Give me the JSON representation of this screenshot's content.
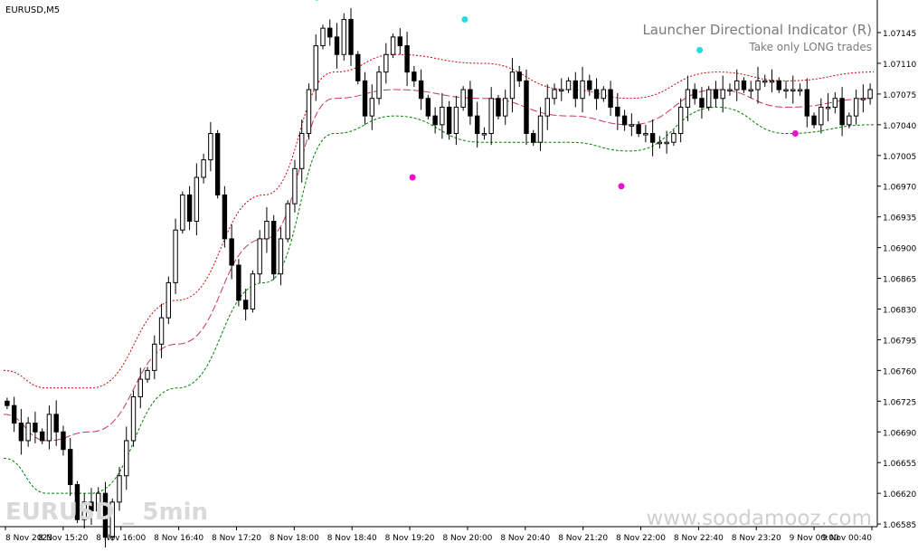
{
  "symbol_label": "EURUSD,M5",
  "indicator": {
    "name": "Launcher Directional Indicator (R)",
    "subtitle": "Take only LONG trades"
  },
  "watermark_left": "EURUSD _ 5min",
  "watermark_right": "www.soodamooz.com",
  "colors": {
    "upper_band": "#cc0000",
    "lower_band": "#008000",
    "middle_line": "#cc3366",
    "signal_up": "#22dddd",
    "signal_down": "#ee11cc",
    "candle": "#000000",
    "axis_text": "#000000"
  },
  "chart_data": {
    "type": "candlestick",
    "timeframe": "M5",
    "y_ticks": [
      "1.07145",
      "1.07110",
      "1.07075",
      "1.07040",
      "1.07005",
      "1.06970",
      "1.06935",
      "1.06900",
      "1.06865",
      "1.06830",
      "1.06795",
      "1.06760",
      "1.06725",
      "1.06690",
      "1.06655",
      "1.06620",
      "1.06585"
    ],
    "x_ticks": [
      "8 Nov 2023",
      "8 Nov 15:20",
      "8 Nov 16:00",
      "8 Nov 16:40",
      "8 Nov 17:20",
      "8 Nov 18:00",
      "8 Nov 18:40",
      "8 Nov 19:20",
      "8 Nov 20:00",
      "8 Nov 20:40",
      "8 Nov 21:20",
      "8 Nov 22:00",
      "8 Nov 22:40",
      "8 Nov 23:20",
      "9 Nov 00:00",
      "9 Nov 00:40"
    ],
    "ylim": [
      1.06582,
      1.07178
    ],
    "closes": [
      1.0672,
      1.067,
      1.0668,
      1.067,
      1.0669,
      1.0668,
      1.0671,
      1.0669,
      1.0667,
      1.0663,
      1.0659,
      1.0661,
      1.066,
      1.0662,
      1.0657,
      1.0661,
      1.0664,
      1.0668,
      1.0673,
      1.0675,
      1.0676,
      1.0679,
      1.0682,
      1.0686,
      1.0692,
      1.0696,
      1.0693,
      1.0698,
      1.07,
      1.0703,
      1.0696,
      1.0691,
      1.0688,
      1.0684,
      1.0683,
      1.0687,
      1.0691,
      1.0693,
      1.0687,
      1.0691,
      1.0695,
      1.0699,
      1.0703,
      1.0708,
      1.0713,
      1.0715,
      1.0714,
      1.0712,
      1.0716,
      1.0712,
      1.0709,
      1.0705,
      1.0707,
      1.071,
      1.0712,
      1.0714,
      1.0713,
      1.071,
      1.0709,
      1.0707,
      1.0705,
      1.0704,
      1.0706,
      1.0703,
      1.0706,
      1.0708,
      1.0705,
      1.0703,
      1.0703,
      1.0707,
      1.0705,
      1.0707,
      1.071,
      1.0709,
      1.0703,
      1.0702,
      1.0705,
      1.0707,
      1.0708,
      1.0708,
      1.0709,
      1.0707,
      1.0709,
      1.0708,
      1.0707,
      1.0708,
      1.0706,
      1.0705,
      1.0704,
      1.0704,
      1.0703,
      1.0703,
      1.0702,
      1.0702,
      1.0702,
      1.0703,
      1.0706,
      1.0708,
      1.0707,
      1.0706,
      1.0708,
      1.0707,
      1.0708,
      1.0708,
      1.0709,
      1.0708,
      1.0708,
      1.0709,
      1.0709,
      1.0709,
      1.0708,
      1.0708,
      1.0708,
      1.0708,
      1.0705,
      1.0704,
      1.0706,
      1.0706,
      1.0707,
      1.0704,
      1.0705,
      1.0707,
      1.0707,
      1.0708
    ],
    "upper_band": [
      [
        0,
        1.0676
      ],
      [
        0.05,
        1.0674
      ],
      [
        0.1,
        1.0674
      ],
      [
        0.2,
        1.0684
      ],
      [
        0.3,
        1.0696
      ],
      [
        0.38,
        1.071
      ],
      [
        0.45,
        1.0712
      ],
      [
        0.55,
        1.0711
      ],
      [
        0.65,
        1.0708
      ],
      [
        0.72,
        1.0707
      ],
      [
        0.82,
        1.071
      ],
      [
        0.9,
        1.0709
      ],
      [
        1,
        1.071
      ]
    ],
    "lower_band": [
      [
        0,
        1.0666
      ],
      [
        0.05,
        1.0662
      ],
      [
        0.1,
        1.0662
      ],
      [
        0.2,
        1.0674
      ],
      [
        0.3,
        1.0686
      ],
      [
        0.38,
        1.0703
      ],
      [
        0.45,
        1.0705
      ],
      [
        0.55,
        1.0702
      ],
      [
        0.65,
        1.0702
      ],
      [
        0.72,
        1.0701
      ],
      [
        0.82,
        1.0706
      ],
      [
        0.9,
        1.0703
      ],
      [
        1,
        1.0704
      ]
    ],
    "middle_line": [
      [
        0,
        1.0671
      ],
      [
        0.05,
        1.0668
      ],
      [
        0.1,
        1.0669
      ],
      [
        0.2,
        1.0679
      ],
      [
        0.3,
        1.0691
      ],
      [
        0.38,
        1.0707
      ],
      [
        0.45,
        1.0708
      ],
      [
        0.55,
        1.0707
      ],
      [
        0.65,
        1.0705
      ],
      [
        0.72,
        1.0704
      ],
      [
        0.82,
        1.0708
      ],
      [
        0.9,
        1.0706
      ],
      [
        1,
        1.0707
      ]
    ],
    "signals_up": [
      [
        0.36,
        1.07185
      ],
      [
        0.53,
        1.0716
      ],
      [
        0.8,
        1.07125
      ]
    ],
    "signals_down": [
      [
        0.47,
        1.0698
      ],
      [
        0.71,
        1.0697
      ],
      [
        0.91,
        1.0703
      ]
    ]
  }
}
